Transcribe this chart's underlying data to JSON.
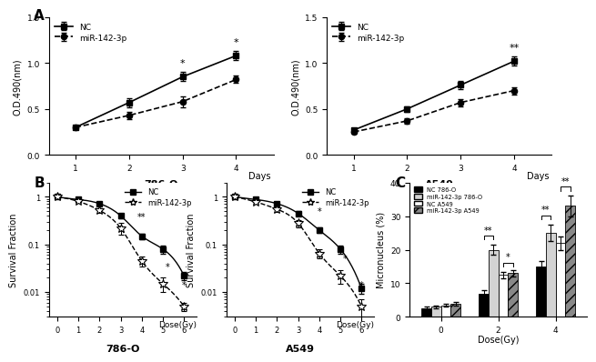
{
  "panel_A_786O": {
    "days": [
      1,
      2,
      3,
      4
    ],
    "NC_mean": [
      0.3,
      0.57,
      0.85,
      1.08
    ],
    "NC_err": [
      0.02,
      0.05,
      0.05,
      0.05
    ],
    "mir_mean": [
      0.3,
      0.43,
      0.58,
      0.82
    ],
    "mir_err": [
      0.02,
      0.04,
      0.06,
      0.04
    ],
    "cell_label": "786-O",
    "ylabel": "O.D.490(nm)",
    "xlabel": "Days",
    "ylim": [
      0.0,
      1.5
    ],
    "yticks": [
      0.0,
      0.5,
      1.0,
      1.5
    ],
    "sig_day3": "*",
    "sig_day4": "*"
  },
  "panel_A_A549": {
    "days": [
      1,
      2,
      3,
      4
    ],
    "NC_mean": [
      0.27,
      0.5,
      0.76,
      1.02
    ],
    "NC_err": [
      0.02,
      0.03,
      0.04,
      0.05
    ],
    "mir_mean": [
      0.25,
      0.37,
      0.57,
      0.7
    ],
    "mir_err": [
      0.02,
      0.03,
      0.04,
      0.04
    ],
    "cell_label": "A549",
    "ylabel": "O.D.490(nm)",
    "xlabel": "Days",
    "ylim": [
      0.0,
      1.5
    ],
    "yticks": [
      0.0,
      0.5,
      1.0,
      1.5
    ],
    "sig_day4": "**"
  },
  "panel_B_786O": {
    "dose": [
      0,
      1,
      2,
      3,
      4,
      5,
      6
    ],
    "NC_mean": [
      1.0,
      0.88,
      0.72,
      0.4,
      0.15,
      0.08,
      0.022
    ],
    "NC_err": [
      0.03,
      0.04,
      0.05,
      0.05,
      0.02,
      0.015,
      0.004
    ],
    "mir_mean": [
      1.0,
      0.8,
      0.52,
      0.22,
      0.045,
      0.015,
      0.005
    ],
    "mir_err": [
      0.03,
      0.05,
      0.06,
      0.06,
      0.01,
      0.005,
      0.001
    ],
    "cell_label": "786-O",
    "ylabel": "Survival Fraction",
    "xlabel": "Dose(Gy)",
    "sig_dose4": "**",
    "sig_dose5": "*",
    "sig_dose6": "*"
  },
  "panel_B_A549": {
    "dose": [
      0,
      1,
      2,
      3,
      4,
      5,
      6
    ],
    "NC_mean": [
      1.0,
      0.88,
      0.72,
      0.45,
      0.2,
      0.08,
      0.012
    ],
    "NC_err": [
      0.03,
      0.04,
      0.04,
      0.05,
      0.025,
      0.015,
      0.003
    ],
    "mir_mean": [
      1.0,
      0.78,
      0.55,
      0.28,
      0.065,
      0.022,
      0.005
    ],
    "mir_err": [
      0.03,
      0.05,
      0.06,
      0.05,
      0.015,
      0.007,
      0.002
    ],
    "cell_label": "A549",
    "ylabel": "Survival Fraction",
    "xlabel": "Dose(Gy)",
    "sig_dose4": "*",
    "sig_dose5": "*",
    "sig_dose6": "*"
  },
  "panel_C": {
    "dose_groups": [
      0,
      2,
      4
    ],
    "NC_786O": [
      2.5,
      7.0,
      15.0
    ],
    "NC_786O_err": [
      0.5,
      1.0,
      1.5
    ],
    "mir_786O": [
      3.0,
      20.0,
      25.0
    ],
    "mir_786O_err": [
      0.5,
      1.5,
      2.5
    ],
    "NC_A549": [
      3.5,
      12.5,
      22.0
    ],
    "NC_A549_err": [
      0.5,
      1.0,
      2.0
    ],
    "mir_A549": [
      4.0,
      13.0,
      33.0
    ],
    "mir_A549_err": [
      0.5,
      1.0,
      3.0
    ],
    "ylabel": "Micronucleus (%)",
    "xlabel": "Dose(Gy)",
    "ylim": [
      0,
      40
    ],
    "yticks": [
      0,
      10,
      20,
      30,
      40
    ]
  }
}
